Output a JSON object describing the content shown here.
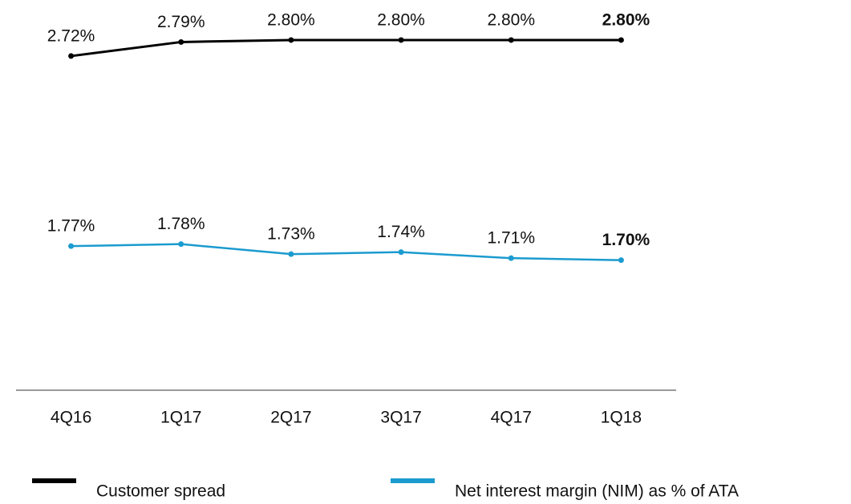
{
  "chart_data": {
    "type": "line",
    "categories": [
      "4Q16",
      "1Q17",
      "2Q17",
      "3Q17",
      "4Q17",
      "1Q18"
    ],
    "series": [
      {
        "name": "Customer spread",
        "color": "#000000",
        "values": [
          2.72,
          2.79,
          2.8,
          2.8,
          2.8,
          2.8
        ],
        "value_labels": [
          "2.72%",
          "2.79%",
          "2.80%",
          "2.80%",
          "2.80%",
          "2.80%"
        ]
      },
      {
        "name": "Net interest margin (NIM) as % of ATA",
        "color": "#1b9bcf",
        "values": [
          1.77,
          1.78,
          1.73,
          1.74,
          1.71,
          1.7
        ],
        "value_labels": [
          "1.77%",
          "1.78%",
          "1.73%",
          "1.74%",
          "1.71%",
          "1.70%"
        ]
      }
    ],
    "ylim": [
      1.05,
      3.0
    ]
  }
}
